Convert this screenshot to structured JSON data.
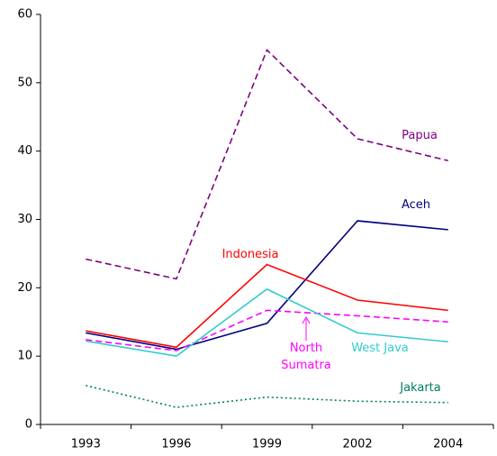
{
  "chart_data": {
    "type": "line",
    "categories": [
      "1993",
      "1996",
      "1999",
      "2002",
      "2004"
    ],
    "series": [
      {
        "name": "Papua",
        "color": "#800080",
        "dash": "dashed",
        "values": [
          24.2,
          21.3,
          54.8,
          41.8,
          38.6
        ]
      },
      {
        "name": "Aceh",
        "color": "#000080",
        "dash": "solid",
        "values": [
          13.4,
          11.0,
          14.8,
          29.8,
          28.5
        ]
      },
      {
        "name": "Indonesia",
        "color": "#ff0000",
        "dash": "solid",
        "values": [
          13.7,
          11.3,
          23.4,
          18.2,
          16.7
        ]
      },
      {
        "name": "North Sumatra",
        "color": "#ff00ff",
        "dash": "dashed",
        "values": [
          12.4,
          10.8,
          16.7,
          15.9,
          15.0
        ]
      },
      {
        "name": "West Java",
        "color": "#33cccc",
        "dash": "solid",
        "values": [
          12.2,
          10.0,
          19.8,
          13.4,
          12.1
        ]
      },
      {
        "name": "Jakarta",
        "color": "#008060",
        "dash": "dotted",
        "values": [
          5.7,
          2.5,
          4.0,
          3.4,
          3.2
        ]
      }
    ],
    "ylim": [
      0,
      60
    ],
    "yticks": [
      0,
      10,
      20,
      30,
      40,
      50,
      60
    ],
    "grid": false
  }
}
